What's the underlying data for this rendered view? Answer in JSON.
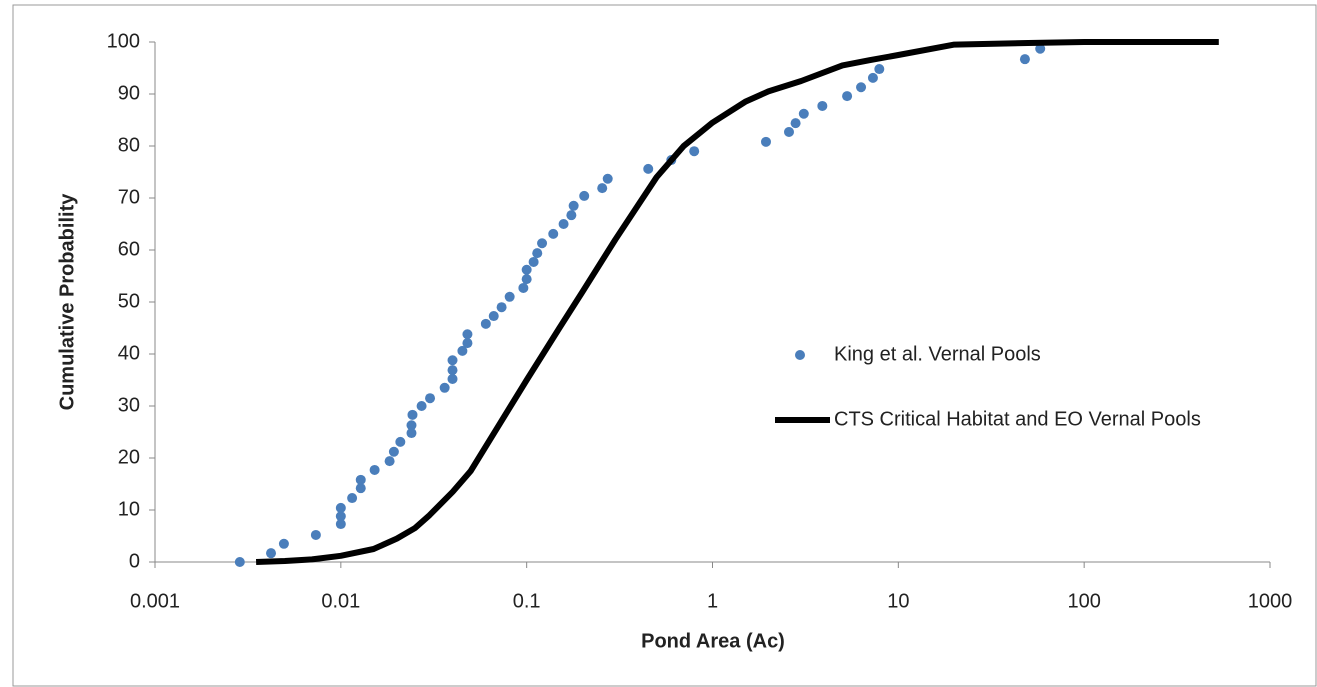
{
  "chart_data": {
    "type": "scatter",
    "x_label": "Pond Area (Ac)",
    "y_label": "Cumulative Probability",
    "xscale": "log",
    "xlim": [
      0.001,
      1000
    ],
    "xticks": [
      0.001,
      0.01,
      0.1,
      1,
      10,
      100,
      1000
    ],
    "ylim": [
      0,
      100
    ],
    "yticks": [
      0,
      10,
      20,
      30,
      40,
      50,
      60,
      70,
      80,
      90,
      100
    ],
    "grid": false,
    "legend": "right",
    "series": [
      {
        "name": "King et al. Vernal Pools",
        "type": "scatter",
        "color": "#4a7ebb",
        "x": [
          0.00286,
          0.00421,
          0.00494,
          0.00734,
          0.01,
          0.01,
          0.01,
          0.0115,
          0.0128,
          0.0128,
          0.0152,
          0.0183,
          0.0193,
          0.0209,
          0.024,
          0.024,
          0.0243,
          0.0272,
          0.0302,
          0.0362,
          0.0399,
          0.0399,
          0.0399,
          0.0451,
          0.048,
          0.048,
          0.0603,
          0.0665,
          0.0733,
          0.081,
          0.096,
          0.1,
          0.1,
          0.109,
          0.114,
          0.121,
          0.139,
          0.158,
          0.174,
          0.179,
          0.204,
          0.255,
          0.273,
          0.451,
          0.6,
          0.797,
          1.94,
          2.58,
          2.8,
          3.1,
          3.9,
          5.3,
          6.3,
          7.3,
          7.9,
          48,
          58
        ],
        "values": [
          0,
          1.7,
          3.5,
          5.2,
          7.3,
          8.8,
          10.4,
          12.3,
          14.2,
          15.8,
          17.7,
          19.4,
          21.2,
          23.1,
          24.8,
          26.3,
          28.3,
          30.0,
          31.5,
          33.5,
          35.2,
          36.9,
          38.8,
          40.6,
          42.1,
          43.8,
          45.8,
          47.3,
          49.0,
          51.0,
          52.7,
          54.4,
          56.2,
          57.7,
          59.4,
          61.3,
          63.1,
          65.0,
          66.7,
          68.5,
          70.4,
          71.9,
          73.7,
          75.6,
          77.3,
          79.0,
          80.8,
          82.7,
          84.4,
          86.2,
          87.7,
          89.6,
          91.3,
          93.1,
          94.8,
          96.7,
          98.7
        ]
      },
      {
        "name": "CTS Critical Habitat and EO Vernal Pools",
        "type": "line",
        "color": "#000000",
        "x": [
          0.0035,
          0.005,
          0.007,
          0.01,
          0.015,
          0.02,
          0.025,
          0.03,
          0.04,
          0.05,
          0.07,
          0.1,
          0.15,
          0.2,
          0.3,
          0.5,
          0.7,
          1,
          1.5,
          2,
          3,
          5,
          7,
          10,
          20,
          50,
          100,
          530
        ],
        "values": [
          0,
          0.2,
          0.5,
          1.2,
          2.5,
          4.5,
          6.5,
          9,
          13.5,
          17.5,
          26,
          35,
          45,
          52,
          62,
          74,
          80,
          84.5,
          88.5,
          90.5,
          92.5,
          95.5,
          96.5,
          97.5,
          99.5,
          99.8,
          100,
          100
        ]
      }
    ]
  }
}
